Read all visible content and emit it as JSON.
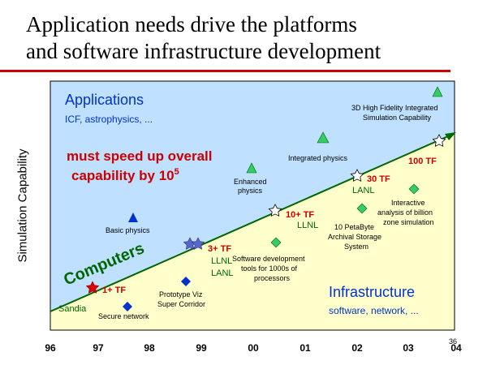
{
  "title": {
    "line1": "Application needs drive the platforms",
    "line2": "and software infrastructure development"
  },
  "y_axis_label": "Simulation Capability",
  "x_axis": {
    "ticks": [
      "96",
      "97",
      "98",
      "99",
      "00",
      "01",
      "02",
      "03",
      "04"
    ]
  },
  "page_number": "36",
  "colors": {
    "rule": "#cc0000",
    "applications_region": "#bfe0ff",
    "infrastructure_region": "#ffffcc",
    "trend_line": "#006600",
    "heading_blue": "#0033cc",
    "callout_red": "#cc0000",
    "triangle_green": "#33cc66",
    "diamond_green": "#33cc66",
    "marker_blue": "#0033cc",
    "star_red": "#dd0000",
    "star_blue": "#5566cc",
    "star_white": "#ffffff"
  },
  "regions": {
    "applications": {
      "title": "Applications",
      "subtitle": "ICF, astrophysics, ..."
    },
    "infrastructure": {
      "title": "Infrastructure",
      "subtitle": "software, network, ..."
    },
    "speedup_callout": {
      "line1": "must speed up overall",
      "line2_prefix": "capability by 10",
      "line2_exp": "5"
    }
  },
  "trend_label": "Computers",
  "milestones": [
    {
      "label": "1+ TF",
      "site": "Sandia",
      "marker": "star",
      "color": "red"
    },
    {
      "label": "3+ TF",
      "site": "LLNL\nLANL",
      "marker": "star",
      "color": "blue"
    },
    {
      "label": "10+ TF",
      "site": "LLNL",
      "marker": "star",
      "color": "white"
    },
    {
      "label": "30 TF",
      "site": "LANL",
      "marker": "star",
      "color": "white"
    },
    {
      "label": "100 TF",
      "site": "",
      "marker": "star",
      "color": "white"
    }
  ],
  "application_points": [
    {
      "label": "Basic physics",
      "marker": "triangle",
      "color": "blue"
    },
    {
      "label": "Enhanced\nphysics",
      "marker": "triangle",
      "color": "green"
    },
    {
      "label": "Integrated physics",
      "marker": "triangle",
      "color": "green"
    },
    {
      "label": "3D High Fidelity Integrated\nSimulation Capability",
      "marker": "triangle",
      "color": "green"
    }
  ],
  "infrastructure_points": [
    {
      "label": "Secure network",
      "marker": "diamond",
      "color": "blue"
    },
    {
      "label": "Prototype Viz\nSuper Corridor",
      "marker": "diamond",
      "color": "blue"
    },
    {
      "label": "Software development\ntools for 1000s of\nprocessors",
      "marker": "diamond",
      "color": "green"
    },
    {
      "label": "10 PetaByte\nArchival Storage\nSystem",
      "marker": "diamond",
      "color": "green"
    },
    {
      "label": "Interactive\nanalysis of billion\nzone simulation",
      "marker": "diamond",
      "color": "green"
    }
  ]
}
